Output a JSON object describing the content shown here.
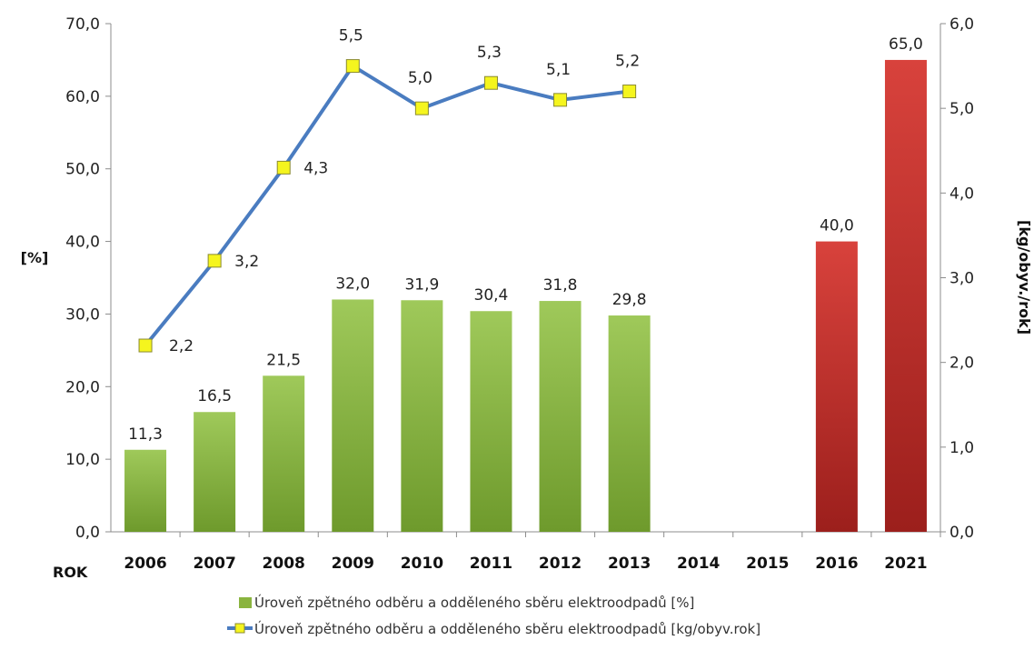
{
  "chart_data": {
    "type": "bar",
    "xlabel": "ROK",
    "ylabel": "[%]",
    "y2label": "[kg/obyv./rok]",
    "categories": [
      "2006",
      "2007",
      "2008",
      "2009",
      "2010",
      "2011",
      "2012",
      "2013",
      "2014",
      "2015",
      "2016",
      "2021"
    ],
    "ylim": [
      0,
      70
    ],
    "y2lim": [
      0,
      6
    ],
    "yticks": [
      "0,0",
      "10,0",
      "20,0",
      "30,0",
      "40,0",
      "50,0",
      "60,0",
      "70,0"
    ],
    "y2ticks": [
      "0,0",
      "1,0",
      "2,0",
      "3,0",
      "4,0",
      "5,0",
      "6,0"
    ],
    "series": [
      {
        "name": "Úroveň zpětného odběru a odděleného sběru elektroodpadů [%]",
        "type": "bar",
        "axis": "left",
        "color": "#8ab43f",
        "values": [
          11.3,
          16.5,
          21.5,
          32.0,
          31.9,
          30.4,
          31.8,
          29.8,
          null,
          null,
          null,
          null
        ],
        "labels": [
          "11,3",
          "16,5",
          "21,5",
          "32,0",
          "31,9",
          "30,4",
          "31,8",
          "29,8",
          "",
          "",
          "",
          ""
        ]
      },
      {
        "type": "bar",
        "axis": "left",
        "color": "#c0302c",
        "values": [
          null,
          null,
          null,
          null,
          null,
          null,
          null,
          null,
          null,
          null,
          40.0,
          65.0
        ],
        "labels": [
          "",
          "",
          "",
          "",
          "",
          "",
          "",
          "",
          "",
          "",
          "40,0",
          "65,0"
        ]
      },
      {
        "name": "Úroveň zpětného odběru a odděleného sběru elektroodpadů [kg/obyv.rok]",
        "type": "line",
        "axis": "right",
        "color": "#4a7cc0",
        "marker_color": "#f5f51e",
        "values": [
          2.2,
          3.2,
          4.3,
          5.5,
          5.0,
          5.3,
          5.1,
          5.2,
          null,
          null,
          null,
          null
        ],
        "labels": [
          "2,2",
          "3,2",
          "4,3",
          "5,5",
          "5,0",
          "5,3",
          "5,1",
          "5,2",
          "",
          "",
          "",
          ""
        ]
      }
    ],
    "legend_position": "bottom",
    "grid": false
  }
}
